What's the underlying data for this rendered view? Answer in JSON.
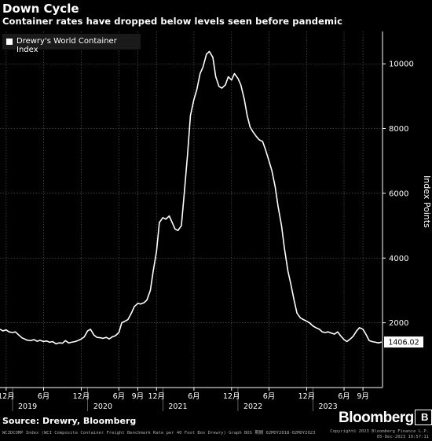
{
  "header": {
    "title": "Down Cycle",
    "subtitle": "Container rates have dropped below levels seen before pandemic"
  },
  "footer": {
    "source": "Source: Drewry, Bloomberg",
    "brand": "Bloomberg",
    "footnote": "WCIDCOMP Index (WCI Composite Container Freight Benchmark Rate per 40 Foot Box Drewry) Graph BOS  期間 02MOY2018-02MOY2023",
    "copyright_line1": "Copyright© 2023 Bloomberg Finance L.P.",
    "copyright_line2": "05-Dec-2023 19:57:11"
  },
  "colors": {
    "background": "#000000",
    "line": "#ffffff",
    "grid": "#555555",
    "text": "#ffffff"
  },
  "chart_data": {
    "type": "line",
    "legend": {
      "label": "Drewry's World Container Index",
      "position": "top-left"
    },
    "ylabel": "Index Points",
    "ylim": [
      0,
      11000
    ],
    "yticks": [
      2000,
      4000,
      6000,
      8000,
      10000
    ],
    "ytick_labels": [
      "2000",
      "4000",
      "6000",
      "8000",
      "10000"
    ],
    "xlim": [
      "2018-11-01",
      "2023-12-05"
    ],
    "xticks": [
      {
        "date": "2018-12-01",
        "label": "12月"
      },
      {
        "date": "2019-06-01",
        "label": "6月"
      },
      {
        "date": "2019-12-01",
        "label": "12月"
      },
      {
        "date": "2020-06-01",
        "label": "6月"
      },
      {
        "date": "2020-09-01",
        "label": "9月"
      },
      {
        "date": "2020-12-01",
        "label": "12月"
      },
      {
        "date": "2021-06-01",
        "label": "6月"
      },
      {
        "date": "2021-12-01",
        "label": "12月"
      },
      {
        "date": "2022-06-01",
        "label": "6月"
      },
      {
        "date": "2022-12-01",
        "label": "12月"
      },
      {
        "date": "2023-06-01",
        "label": "6月"
      },
      {
        "date": "2023-09-01",
        "label": "9月"
      }
    ],
    "year_labels": [
      {
        "date": "2019-03-15",
        "label": "2019"
      },
      {
        "date": "2020-03-15",
        "label": "2020"
      },
      {
        "date": "2021-03-15",
        "label": "2021"
      },
      {
        "date": "2022-03-15",
        "label": "2022"
      },
      {
        "date": "2023-03-15",
        "label": "2023"
      }
    ],
    "last_value_label": "1406.02",
    "series": [
      {
        "name": "Drewry's World Container Index",
        "points": [
          [
            "2018-11-01",
            1800
          ],
          [
            "2018-11-15",
            1750
          ],
          [
            "2018-12-01",
            1780
          ],
          [
            "2018-12-15",
            1720
          ],
          [
            "2019-01-01",
            1700
          ],
          [
            "2019-01-15",
            1720
          ],
          [
            "2019-02-01",
            1620
          ],
          [
            "2019-02-15",
            1540
          ],
          [
            "2019-03-01",
            1500
          ],
          [
            "2019-03-15",
            1460
          ],
          [
            "2019-04-01",
            1450
          ],
          [
            "2019-04-15",
            1480
          ],
          [
            "2019-05-01",
            1430
          ],
          [
            "2019-05-15",
            1460
          ],
          [
            "2019-06-01",
            1420
          ],
          [
            "2019-06-15",
            1440
          ],
          [
            "2019-07-01",
            1400
          ],
          [
            "2019-07-15",
            1420
          ],
          [
            "2019-08-01",
            1350
          ],
          [
            "2019-08-15",
            1380
          ],
          [
            "2019-09-01",
            1370
          ],
          [
            "2019-09-15",
            1450
          ],
          [
            "2019-10-01",
            1380
          ],
          [
            "2019-10-15",
            1400
          ],
          [
            "2019-11-01",
            1420
          ],
          [
            "2019-11-15",
            1450
          ],
          [
            "2019-12-01",
            1500
          ],
          [
            "2019-12-15",
            1560
          ],
          [
            "2020-01-01",
            1750
          ],
          [
            "2020-01-15",
            1800
          ],
          [
            "2020-02-01",
            1620
          ],
          [
            "2020-02-15",
            1550
          ],
          [
            "2020-03-01",
            1540
          ],
          [
            "2020-03-15",
            1520
          ],
          [
            "2020-04-01",
            1550
          ],
          [
            "2020-04-15",
            1500
          ],
          [
            "2020-05-01",
            1570
          ],
          [
            "2020-05-15",
            1600
          ],
          [
            "2020-06-01",
            1700
          ],
          [
            "2020-06-15",
            2000
          ],
          [
            "2020-07-01",
            2050
          ],
          [
            "2020-07-15",
            2100
          ],
          [
            "2020-08-01",
            2300
          ],
          [
            "2020-08-15",
            2500
          ],
          [
            "2020-09-01",
            2600
          ],
          [
            "2020-09-15",
            2580
          ],
          [
            "2020-10-01",
            2620
          ],
          [
            "2020-10-15",
            2700
          ],
          [
            "2020-11-01",
            3000
          ],
          [
            "2020-11-15",
            3600
          ],
          [
            "2020-12-01",
            4200
          ],
          [
            "2020-12-15",
            5100
          ],
          [
            "2021-01-01",
            5250
          ],
          [
            "2021-01-15",
            5200
          ],
          [
            "2021-02-01",
            5300
          ],
          [
            "2021-02-15",
            5100
          ],
          [
            "2021-03-01",
            4900
          ],
          [
            "2021-03-15",
            4850
          ],
          [
            "2021-04-01",
            5000
          ],
          [
            "2021-04-15",
            6000
          ],
          [
            "2021-05-01",
            7200
          ],
          [
            "2021-05-15",
            8400
          ],
          [
            "2021-06-01",
            8900
          ],
          [
            "2021-06-15",
            9200
          ],
          [
            "2021-07-01",
            9700
          ],
          [
            "2021-07-15",
            9900
          ],
          [
            "2021-08-01",
            10300
          ],
          [
            "2021-08-15",
            10380
          ],
          [
            "2021-09-01",
            10200
          ],
          [
            "2021-09-15",
            9600
          ],
          [
            "2021-10-01",
            9300
          ],
          [
            "2021-10-15",
            9250
          ],
          [
            "2021-11-01",
            9350
          ],
          [
            "2021-11-15",
            9600
          ],
          [
            "2021-12-01",
            9500
          ],
          [
            "2021-12-15",
            9700
          ],
          [
            "2022-01-01",
            9550
          ],
          [
            "2022-01-15",
            9350
          ],
          [
            "2022-02-01",
            8900
          ],
          [
            "2022-02-15",
            8400
          ],
          [
            "2022-03-01",
            8050
          ],
          [
            "2022-03-15",
            7900
          ],
          [
            "2022-04-01",
            7750
          ],
          [
            "2022-04-15",
            7650
          ],
          [
            "2022-05-01",
            7600
          ],
          [
            "2022-05-15",
            7350
          ],
          [
            "2022-06-01",
            7000
          ],
          [
            "2022-06-15",
            6700
          ],
          [
            "2022-07-01",
            6200
          ],
          [
            "2022-07-15",
            5600
          ],
          [
            "2022-08-01",
            5000
          ],
          [
            "2022-08-15",
            4300
          ],
          [
            "2022-09-01",
            3600
          ],
          [
            "2022-09-15",
            3200
          ],
          [
            "2022-10-01",
            2700
          ],
          [
            "2022-10-15",
            2300
          ],
          [
            "2022-11-01",
            2150
          ],
          [
            "2022-11-15",
            2100
          ],
          [
            "2022-12-01",
            2050
          ],
          [
            "2022-12-15",
            2000
          ],
          [
            "2023-01-01",
            1900
          ],
          [
            "2023-01-15",
            1850
          ],
          [
            "2023-02-01",
            1800
          ],
          [
            "2023-02-15",
            1720
          ],
          [
            "2023-03-01",
            1700
          ],
          [
            "2023-03-15",
            1720
          ],
          [
            "2023-04-01",
            1680
          ],
          [
            "2023-04-15",
            1650
          ],
          [
            "2023-05-01",
            1720
          ],
          [
            "2023-05-15",
            1600
          ],
          [
            "2023-06-01",
            1480
          ],
          [
            "2023-06-15",
            1420
          ],
          [
            "2023-07-01",
            1500
          ],
          [
            "2023-07-15",
            1580
          ],
          [
            "2023-08-01",
            1750
          ],
          [
            "2023-08-15",
            1850
          ],
          [
            "2023-09-01",
            1800
          ],
          [
            "2023-09-15",
            1650
          ],
          [
            "2023-10-01",
            1450
          ],
          [
            "2023-10-15",
            1420
          ],
          [
            "2023-11-01",
            1400
          ],
          [
            "2023-11-15",
            1380
          ],
          [
            "2023-12-01",
            1406
          ]
        ]
      }
    ]
  }
}
